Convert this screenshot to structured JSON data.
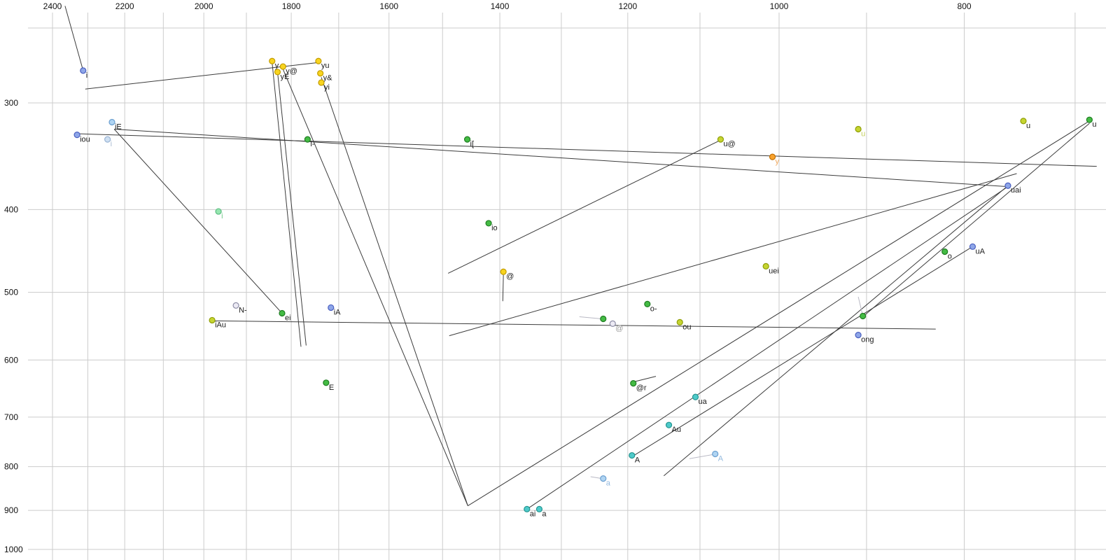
{
  "chart_data": {
    "type": "scatter",
    "title": "",
    "description": "Vowel formant scatter plot (F2 horizontal reversed log axis in Hz, F1 vertical log axis in Hz) with trajectory lines",
    "x_axis": {
      "ticks": [
        2400,
        2200,
        2000,
        1800,
        1600,
        1400,
        1200,
        1000,
        800
      ],
      "scale": "log",
      "reversed": true,
      "ref": 2400,
      "grid_min": 700,
      "grid_max": 2400,
      "grid_step": 100,
      "unit": "Hz"
    },
    "y_axis": {
      "ticks": [
        300,
        400,
        500,
        600,
        700,
        800,
        900,
        1000
      ],
      "scale": "log",
      "reversed": false,
      "ref": 300,
      "unit": "Hz"
    },
    "grid": true,
    "points": [
      {
        "label": "i",
        "f2": 2313,
        "f1": 275,
        "c": "blue"
      },
      {
        "label": "iE",
        "f2": 2234,
        "f1": 316,
        "c": "lightblue"
      },
      {
        "label": "iou",
        "f2": 2330,
        "f1": 327,
        "c": "blue"
      },
      {
        "label": "i",
        "f2": 2246,
        "f1": 331,
        "c": "paleblue",
        "light": true
      },
      {
        "label": "i",
        "f2": 1965,
        "f1": 402,
        "c": "lightgreen",
        "light": true
      },
      {
        "label": "y",
        "f2": 1842,
        "f1": 268,
        "c": "yellow"
      },
      {
        "label": "y@",
        "f2": 1818,
        "f1": 272,
        "c": "yellow"
      },
      {
        "label": "yE",
        "f2": 1830,
        "f1": 276,
        "c": "yellow"
      },
      {
        "label": "yu",
        "f2": 1742,
        "f1": 268,
        "c": "yellow"
      },
      {
        "label": "y&",
        "f2": 1738,
        "f1": 277,
        "c": "yellow"
      },
      {
        "label": "yi",
        "f2": 1736,
        "f1": 284,
        "c": "yellow"
      },
      {
        "label": "i-",
        "f2": 1765,
        "f1": 331,
        "c": "green"
      },
      {
        "label": "i[",
        "f2": 1456,
        "f1": 331,
        "c": "green"
      },
      {
        "label": "u@",
        "f2": 1073,
        "f1": 331,
        "c": "yellowgreen"
      },
      {
        "label": "y",
        "f2": 1008,
        "f1": 347,
        "c": "orange",
        "light": true
      },
      {
        "label": "u",
        "f2": 909,
        "f1": 322,
        "c": "yellowgreen",
        "light": true
      },
      {
        "label": "u",
        "f2": 745,
        "f1": 315,
        "c": "yellowgreen"
      },
      {
        "label": "u",
        "f2": 688,
        "f1": 314,
        "c": "green"
      },
      {
        "label": "uai",
        "f2": 759,
        "f1": 375,
        "c": "blue"
      },
      {
        "label": "io",
        "f2": 1419,
        "f1": 415,
        "c": "green"
      },
      {
        "label": "@",
        "f2": 1394,
        "f1": 473,
        "c": "yellow"
      },
      {
        "label": "uei",
        "f2": 1016,
        "f1": 466,
        "c": "yellowgreen"
      },
      {
        "label": "o",
        "f2": 819,
        "f1": 448,
        "c": "green"
      },
      {
        "label": "uA",
        "f2": 792,
        "f1": 442,
        "c": "blue"
      },
      {
        "label": "N-",
        "f2": 1924,
        "f1": 518,
        "c": "grayopen"
      },
      {
        "label": "ei",
        "f2": 1820,
        "f1": 529,
        "c": "green"
      },
      {
        "label": "iA",
        "f2": 1716,
        "f1": 521,
        "c": "blue"
      },
      {
        "label": "iAu",
        "f2": 1980,
        "f1": 539,
        "c": "yellowgreen"
      },
      {
        "label": "",
        "f2": 1236,
        "f1": 537,
        "c": "green"
      },
      {
        "label": "@",
        "f2": 1222,
        "f1": 544,
        "c": "grayopen",
        "light": true
      },
      {
        "label": "o-",
        "f2": 1172,
        "f1": 516,
        "c": "green"
      },
      {
        "label": "ou",
        "f2": 1127,
        "f1": 542,
        "c": "yellowgreen"
      },
      {
        "label": "",
        "f2": 904,
        "f1": 533,
        "c": "green"
      },
      {
        "label": "ong",
        "f2": 909,
        "f1": 561,
        "c": "blue"
      },
      {
        "label": "E",
        "f2": 1726,
        "f1": 638,
        "c": "green"
      },
      {
        "label": "@r",
        "f2": 1192,
        "f1": 639,
        "c": "green"
      },
      {
        "label": "ua",
        "f2": 1106,
        "f1": 663,
        "c": "teal"
      },
      {
        "label": "Au",
        "f2": 1142,
        "f1": 715,
        "c": "teal"
      },
      {
        "label": "A",
        "f2": 1194,
        "f1": 776,
        "c": "teal"
      },
      {
        "label": "A",
        "f2": 1080,
        "f1": 773,
        "c": "lightblue",
        "light": true
      },
      {
        "label": "a",
        "f2": 1236,
        "f1": 826,
        "c": "lightblue",
        "light": true
      },
      {
        "label": "ai",
        "f2": 1355,
        "f1": 897,
        "c": "teal"
      },
      {
        "label": "a",
        "f2": 1335,
        "f1": 897,
        "c": "teal"
      }
    ],
    "segments": [
      {
        "p1": [
          2364,
          231
        ],
        "p2": [
          2313,
          275
        ],
        "shade": "dark"
      },
      {
        "p1": [
          2307,
          289
        ],
        "p2": [
          1741,
          269
        ],
        "shade": "dark"
      },
      {
        "p1": [
          2330,
          326
        ],
        "p2": [
          682,
          356
        ],
        "shade": "dark"
      },
      {
        "p1": [
          2228,
          322
        ],
        "p2": [
          759,
          376
        ],
        "shade": "dark"
      },
      {
        "p1": [
          1976,
          540
        ],
        "p2": [
          828,
          552
        ],
        "shade": "dark"
      },
      {
        "p1": [
          1830,
          276
        ],
        "p2": [
          1768,
          577
        ],
        "shade": "dark"
      },
      {
        "p1": [
          1842,
          269
        ],
        "p2": [
          1779,
          579
        ],
        "shade": "dark"
      },
      {
        "p1": [
          1736,
          280
        ],
        "p2": [
          1455,
          889
        ],
        "shade": "dark"
      },
      {
        "p1": [
          1818,
          274
        ],
        "p2": [
          1455,
          889
        ],
        "shade": "dark"
      },
      {
        "p1": [
          1455,
          889
        ],
        "p2": [
          688,
          315
        ],
        "shade": "dark"
      },
      {
        "p1": [
          1355,
          897
        ],
        "p2": [
          759,
          376
        ],
        "shade": "dark"
      },
      {
        "p1": [
          1192,
          777
        ],
        "p2": [
          792,
          442
        ],
        "shade": "dark"
      },
      {
        "p1": [
          1149,
          820
        ],
        "p2": [
          759,
          375
        ],
        "shade": "dark"
      },
      {
        "p1": [
          1488,
          562
        ],
        "p2": [
          751,
          363
        ],
        "shade": "dark"
      },
      {
        "p1": [
          904,
          534
        ],
        "p2": [
          688,
          317
        ],
        "shade": "dark"
      },
      {
        "p1": [
          2228,
          322
        ],
        "p2": [
          1820,
          529
        ],
        "shade": "dark"
      },
      {
        "p1": [
          1490,
          475
        ],
        "p2": [
          1074,
          332
        ],
        "shade": "dark"
      },
      {
        "p1": [
          1394,
          477
        ],
        "p2": [
          1395,
          512
        ],
        "shade": "dark"
      },
      {
        "p1": [
          1190,
          636
        ],
        "p2": [
          1160,
          627
        ],
        "shade": "dark"
      },
      {
        "p1": [
          1272,
          534
        ],
        "p2": [
          1238,
          537
        ],
        "shade": "light"
      },
      {
        "p1": [
          1255,
          822
        ],
        "p2": [
          1238,
          826
        ],
        "shade": "light"
      },
      {
        "p1": [
          1114,
          783
        ],
        "p2": [
          1082,
          774
        ],
        "shade": "light"
      },
      {
        "p1": [
          909,
          506
        ],
        "p2": [
          904,
          533
        ],
        "shade": "light"
      }
    ],
    "palette": {
      "blue": {
        "fill": "#8ea6e8",
        "stroke": "#4a5fc0",
        "lightLabel": "#9ab4d8"
      },
      "lightblue": {
        "fill": "#afd4f2",
        "stroke": "#6b9fd0",
        "lightLabel": "#94badf"
      },
      "paleblue": {
        "fill": "#cfe0f2",
        "stroke": "#9ab4d4",
        "lightLabel": "#aabcd2"
      },
      "teal": {
        "fill": "#4ecaca",
        "stroke": "#22948f",
        "lightLabel": "#7ccaca"
      },
      "yellow": {
        "fill": "#f8d41f",
        "stroke": "#c29c00",
        "lightLabel": "#dcc154"
      },
      "yellowgreen": {
        "fill": "#c6d531",
        "stroke": "#8f9e08",
        "lightLabel": "#c3cf5a"
      },
      "green": {
        "fill": "#44bb44",
        "stroke": "#1f7d22",
        "lightLabel": "#74c98c"
      },
      "orange": {
        "fill": "#f8a22d",
        "stroke": "#c26f00",
        "lightLabel": "#f0a95e"
      },
      "lightgreen": {
        "fill": "#96e6b0",
        "stroke": "#5cbd80",
        "lightLabel": "#74c98c"
      },
      "grayopen": {
        "fill": "#eceaf4",
        "stroke": "#8e8ea6",
        "lightLabel": "#9a9a9a"
      }
    },
    "style": {
      "grid_color": "#cccccc",
      "tick_label_color": "#111111",
      "point_label_color": "#1a1a1a",
      "line_dark": "#3c3c3c",
      "line_light": "#b9b9c4",
      "background": "#ffffff"
    }
  }
}
